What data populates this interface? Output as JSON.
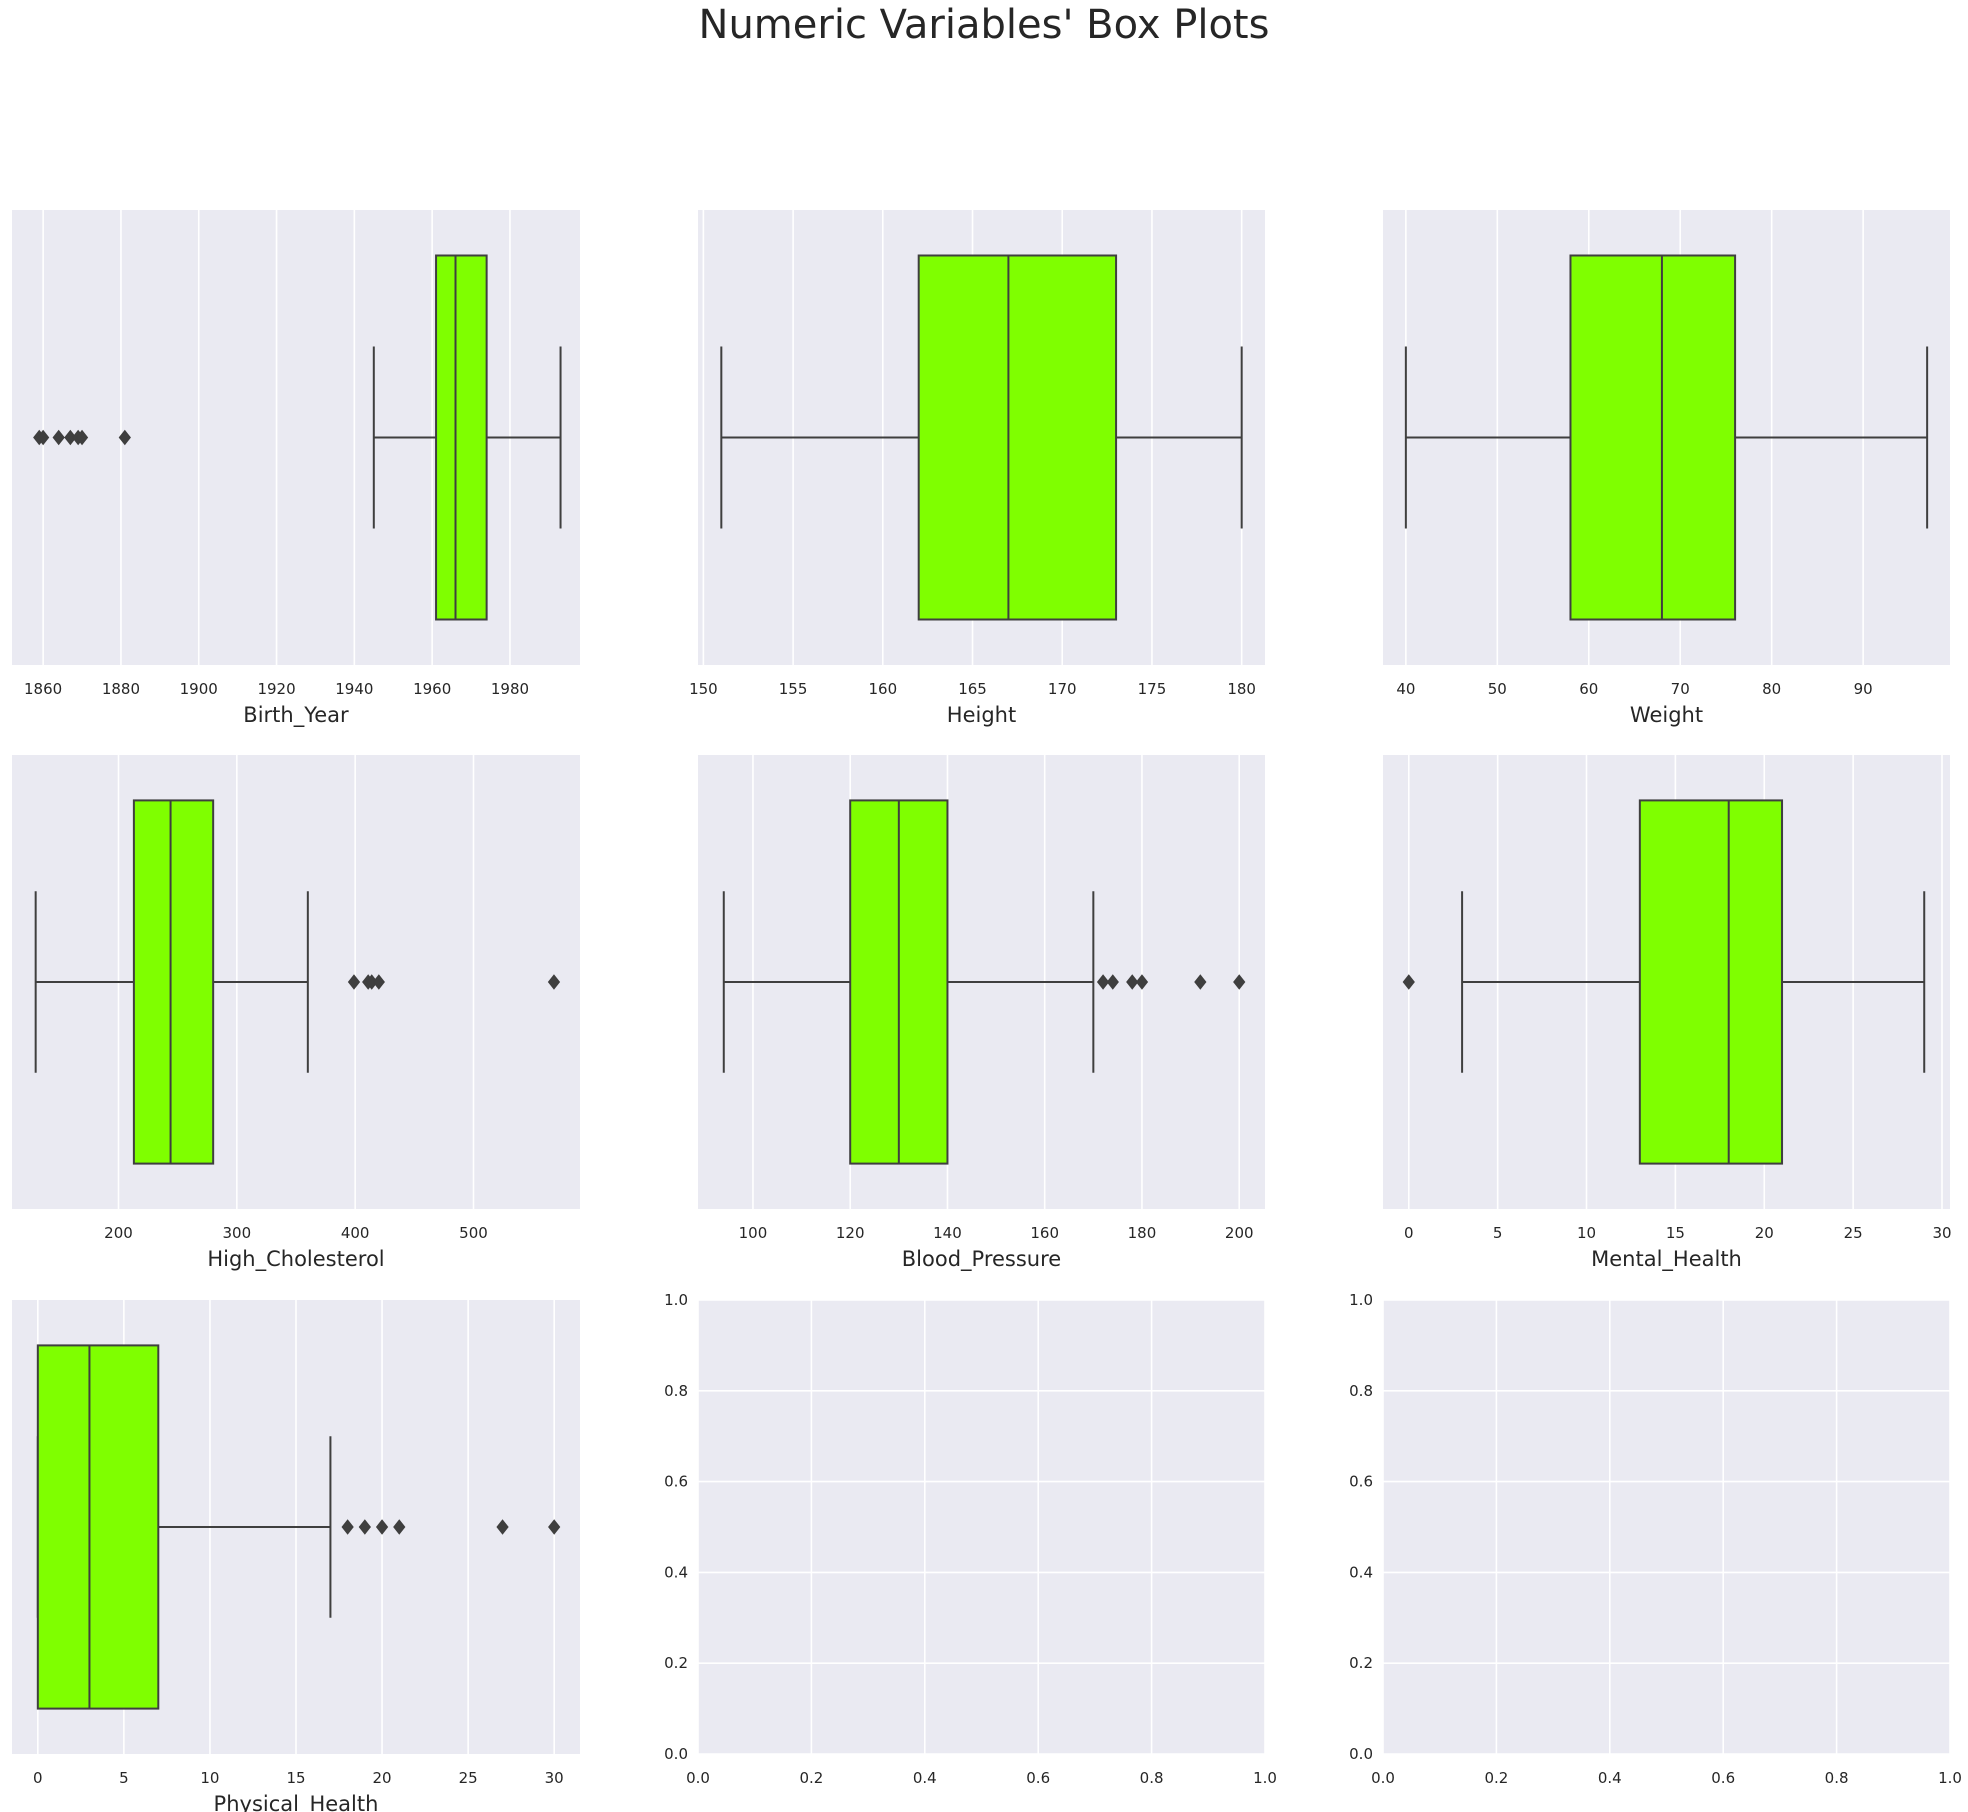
{
  "title": "Numeric Variables' Box Plots",
  "colors": {
    "box_fill": "#7fff00",
    "line": "#3f3f3f",
    "axes_bg": "#eaeaf2",
    "grid": "#ffffff",
    "text": "#262626"
  },
  "chart_data": [
    {
      "type": "box",
      "xlabel": "Birth_Year",
      "xlim": [
        1852,
        1998
      ],
      "xticks": [
        1860,
        1880,
        1900,
        1920,
        1940,
        1960,
        1980
      ],
      "stats": {
        "whisker_low": 1945,
        "q1": 1961,
        "median": 1966,
        "q3": 1974,
        "whisker_high": 1993
      },
      "outliers": [
        1859,
        1860,
        1864,
        1867,
        1869,
        1870,
        1881
      ]
    },
    {
      "type": "box",
      "xlabel": "Height",
      "xlim": [
        149.7,
        181.3
      ],
      "xticks": [
        150,
        155,
        160,
        165,
        170,
        175,
        180
      ],
      "stats": {
        "whisker_low": 151,
        "q1": 162,
        "median": 167,
        "q3": 173,
        "whisker_high": 180
      },
      "outliers": []
    },
    {
      "type": "box",
      "xlabel": "Weight",
      "xlim": [
        37.5,
        99.5
      ],
      "xticks": [
        40,
        50,
        60,
        70,
        80,
        90
      ],
      "stats": {
        "whisker_low": 40,
        "q1": 58,
        "median": 68,
        "q3": 76,
        "whisker_high": 97
      },
      "outliers": []
    },
    {
      "type": "box",
      "xlabel": "High_Cholesterol",
      "xlim": [
        110,
        590
      ],
      "xticks": [
        200,
        300,
        400,
        500
      ],
      "stats": {
        "whisker_low": 130,
        "q1": 213,
        "median": 244,
        "q3": 280,
        "whisker_high": 360
      },
      "outliers": [
        399,
        411,
        414,
        420,
        568
      ]
    },
    {
      "type": "box",
      "xlabel": "Blood_Pressure",
      "xlim": [
        88.7,
        205.3
      ],
      "xticks": [
        100,
        120,
        140,
        160,
        180,
        200
      ],
      "stats": {
        "whisker_low": 94,
        "q1": 120,
        "median": 130,
        "q3": 140,
        "whisker_high": 170
      },
      "outliers": [
        172,
        174,
        178,
        180,
        192,
        200
      ]
    },
    {
      "type": "box",
      "xlabel": "Mental_Health",
      "xlim": [
        -1.45,
        30.45
      ],
      "xticks": [
        0,
        5,
        10,
        15,
        20,
        25,
        30
      ],
      "stats": {
        "whisker_low": 3,
        "q1": 13,
        "median": 18,
        "q3": 21,
        "whisker_high": 29
      },
      "outliers": [
        0
      ]
    },
    {
      "type": "box",
      "xlabel": "Physical_Health",
      "xlim": [
        -1.5,
        31.5
      ],
      "xticks": [
        0,
        5,
        10,
        15,
        20,
        25,
        30
      ],
      "stats": {
        "whisker_low": 0,
        "q1": 0,
        "median": 3,
        "q3": 7,
        "whisker_high": 17
      },
      "outliers": [
        18,
        19,
        20,
        21,
        27,
        30
      ]
    },
    {
      "type": "empty",
      "xlim": [
        0,
        1
      ],
      "ylim": [
        0,
        1
      ],
      "xticks": [
        0.0,
        0.2,
        0.4,
        0.6,
        0.8,
        1.0
      ],
      "yticks": [
        0.0,
        0.2,
        0.4,
        0.6,
        0.8,
        1.0
      ],
      "xtick_labels": [
        "0.0",
        "0.2",
        "0.4",
        "0.6",
        "0.8",
        "1.0"
      ],
      "ytick_labels": [
        "0.0",
        "0.2",
        "0.4",
        "0.6",
        "0.8",
        "1.0"
      ]
    },
    {
      "type": "empty",
      "xlim": [
        0,
        1
      ],
      "ylim": [
        0,
        1
      ],
      "xticks": [
        0.0,
        0.2,
        0.4,
        0.6,
        0.8,
        1.0
      ],
      "yticks": [
        0.0,
        0.2,
        0.4,
        0.6,
        0.8,
        1.0
      ],
      "xtick_labels": [
        "0.0",
        "0.2",
        "0.4",
        "0.6",
        "0.8",
        "1.0"
      ],
      "ytick_labels": [
        "0.0",
        "0.2",
        "0.4",
        "0.6",
        "0.8",
        "1.0"
      ]
    }
  ]
}
